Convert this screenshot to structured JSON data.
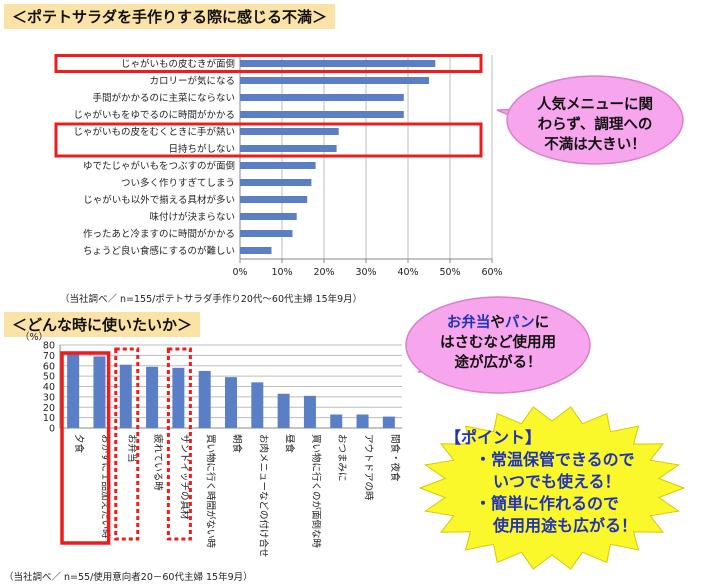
{
  "header_top": "＜ポテトサラダを手作りする際に感じる不満＞",
  "header_bottom": "＜どんな時に使いたいか＞",
  "source_top": "（当社調べ／ n=155/ポテトサラダ手作り20代～60代主婦 15年9月）",
  "source_bottom": "（当社調べ／ n=55/使用意向者20－60代主婦 15年9月）",
  "bubble1": [
    "人気メニューに関",
    "わらず、調理への",
    "不満は大きい！"
  ],
  "bubble2": {
    "line1_a": "お弁当",
    "line1_b": "や",
    "line1_c": "パン",
    "line1_d": "に",
    "line2": "はさむなど使用用",
    "line3": "途が広がる！"
  },
  "burst": {
    "l1": "【ポイント】",
    "l2": "・常温保管できるので",
    "l3": "いつでも使える！",
    "l4": "・簡単に作れるので",
    "l5": "使用用途も広がる！"
  },
  "colors": {
    "bar": "#5b7fc6",
    "highlight": "#ee1c1c",
    "header_bg": "#fbe3a8",
    "bubble": "#f7a6ee",
    "burst": "#faf72a",
    "blue_text": "#2033b8"
  },
  "chart_data": [
    {
      "type": "bar",
      "orientation": "horizontal",
      "categories": [
        "じゃがいもの皮むきが面倒",
        "カロリーが気になる",
        "手間がかかるのに主菜にならない",
        "じゃがいもをゆでるのに時間がかかる",
        "じゃがいもの皮をむくときに手が熱い",
        "日持ちがしない",
        "ゆでたじゃがいもをつぶすのが面倒",
        "つい多く作りすぎてしまう",
        "じゃがいも以外で揃える具材が多い",
        "味付けが決まらない",
        "作ったあと冷ますのに時間がかかる",
        "ちょうど良い食感にするのが難しい"
      ],
      "values": [
        46.5,
        45,
        39,
        39,
        23.5,
        23,
        18,
        17,
        16,
        13.5,
        12.5,
        7.5
      ],
      "xlim": [
        0,
        60
      ],
      "xticks": [
        "0%",
        "10%",
        "20%",
        "30%",
        "40%",
        "50%",
        "60%"
      ],
      "grid": true,
      "highlighted": [
        0,
        4,
        5
      ]
    },
    {
      "type": "bar",
      "orientation": "vertical",
      "categories": [
        "夕食",
        "おかずに１品加えたい時",
        "お弁当",
        "疲れている時",
        "サンドイッチの具材",
        "買い物に行く時間がない時",
        "朝食",
        "お肉メニューなどの付け合せ",
        "昼食",
        "買い物に行くのが面倒な時",
        "おつまみに",
        "アウトドアの時",
        "間食・夜食"
      ],
      "values": [
        71,
        69,
        61,
        59,
        58,
        55,
        49,
        44,
        33,
        31,
        13,
        13,
        11
      ],
      "ylim": [
        0,
        80
      ],
      "yticks": [
        "0",
        "10",
        "20",
        "30",
        "40",
        "50",
        "60",
        "70",
        "80"
      ],
      "ylabel": "（%）",
      "grid": true,
      "highlight_solid": [
        0,
        1
      ],
      "highlight_dashed": [
        2,
        4
      ]
    }
  ]
}
